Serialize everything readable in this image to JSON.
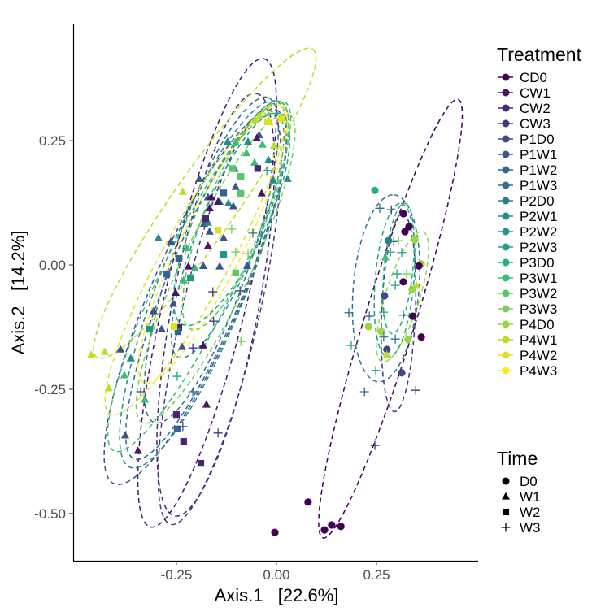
{
  "chart_data": {
    "type": "scatter",
    "xlabel": "Axis.1   [22.6%]",
    "ylabel": "Axis.2   [14.2%]",
    "xlim": [
      -0.508,
      0.504
    ],
    "ylim": [
      -0.595,
      0.484
    ],
    "xticks": [
      {
        "v": -0.25,
        "label": "-0.25"
      },
      {
        "v": 0,
        "label": "0.00"
      },
      {
        "v": 0.25,
        "label": "0.25"
      }
    ],
    "yticks": [
      {
        "v": 0.25,
        "label": "0.25"
      },
      {
        "v": 0,
        "label": "0.00"
      },
      {
        "v": -0.25,
        "label": "-0.25"
      },
      {
        "v": -0.5,
        "label": "-0.50"
      }
    ],
    "grid": false,
    "legend_placement": "right",
    "legend_treatment": {
      "title": "Treatment",
      "items": [
        {
          "label": "CD0",
          "color": "#440154"
        },
        {
          "label": "CW1",
          "color": "#481568"
        },
        {
          "label": "CW2",
          "color": "#482677"
        },
        {
          "label": "CW3",
          "color": "#453781"
        },
        {
          "label": "P1D0",
          "color": "#3F4788"
        },
        {
          "label": "P1W1",
          "color": "#39558C"
        },
        {
          "label": "P1W2",
          "color": "#32648E"
        },
        {
          "label": "P1W3",
          "color": "#2D718E"
        },
        {
          "label": "P2D0",
          "color": "#287D8E"
        },
        {
          "label": "P2W1",
          "color": "#238A8D"
        },
        {
          "label": "P2W2",
          "color": "#1F968B"
        },
        {
          "label": "P2W3",
          "color": "#20A386"
        },
        {
          "label": "P3D0",
          "color": "#29AF7F"
        },
        {
          "label": "P3W1",
          "color": "#3CBC75"
        },
        {
          "label": "P3W2",
          "color": "#56C667"
        },
        {
          "label": "P3W3",
          "color": "#75D054"
        },
        {
          "label": "P4D0",
          "color": "#95D840"
        },
        {
          "label": "P4W1",
          "color": "#BADE28"
        },
        {
          "label": "P4W2",
          "color": "#DDE318"
        },
        {
          "label": "P4W3",
          "color": "#FDE725"
        }
      ]
    },
    "legend_time": {
      "title": "Time",
      "items": [
        {
          "label": "D0",
          "shape": "circle"
        },
        {
          "label": "W1",
          "shape": "triangle"
        },
        {
          "label": "W2",
          "shape": "square"
        },
        {
          "label": "W3",
          "shape": "plus"
        }
      ]
    },
    "ellipses": [
      {
        "group": "CD0",
        "center": [
          0.285,
          -0.108
        ],
        "major": [
          0.169,
          0.441
        ],
        "minor_ratio": 0.11
      },
      {
        "group": "P1W3",
        "center": [
          0.274,
          -0.047
        ],
        "major": [
          0.02,
          0.188
        ],
        "minor_ratio": 0.35
      },
      {
        "group": "CW3",
        "center": [
          0.305,
          -0.096
        ],
        "major": [
          0.01,
          0.199
        ],
        "minor_ratio": 0.17
      },
      {
        "group": "P4D0",
        "center": [
          0.315,
          -0.064
        ],
        "major": [
          0.051,
          0.131
        ],
        "minor_ratio": 0.25
      },
      {
        "group": "P2W3",
        "center": [
          0.295,
          -0.031
        ],
        "major": [
          0.016,
          0.155
        ],
        "minor_ratio": 0.25
      },
      {
        "group": "P3D0",
        "center": [
          0.305,
          -0.007
        ],
        "major": [
          0.016,
          0.131
        ],
        "minor_ratio": 0.22
      },
      {
        "group": "CW1",
        "center": [
          -0.173,
          -0.056
        ],
        "major": [
          0.142,
          0.471
        ],
        "minor_ratio": 0.17
      },
      {
        "group": "CW2",
        "center": [
          -0.152,
          -0.08
        ],
        "major": [
          0.102,
          0.425
        ],
        "minor_ratio": 0.2
      },
      {
        "group": "CW3",
        "center": [
          -0.142,
          -0.105
        ],
        "major": [
          0.122,
          0.417
        ],
        "minor_ratio": 0.18
      },
      {
        "group": "P1W1",
        "center": [
          -0.203,
          -0.064
        ],
        "major": [
          0.203,
          0.376
        ],
        "minor_ratio": 0.22
      },
      {
        "group": "P1W2",
        "center": [
          -0.173,
          -0.031
        ],
        "major": [
          0.183,
          0.359
        ],
        "minor_ratio": 0.2
      },
      {
        "group": "P1W3",
        "center": [
          -0.163,
          0.01
        ],
        "major": [
          0.142,
          0.327
        ],
        "minor_ratio": 0.22
      },
      {
        "group": "P2W1",
        "center": [
          -0.183,
          -0.039
        ],
        "major": [
          0.183,
          0.368
        ],
        "minor_ratio": 0.22
      },
      {
        "group": "P2W2",
        "center": [
          -0.122,
          0.059
        ],
        "major": [
          0.122,
          0.245
        ],
        "minor_ratio": 0.23
      },
      {
        "group": "P2W3",
        "center": [
          -0.112,
          0.092
        ],
        "major": [
          0.122,
          0.212
        ],
        "minor_ratio": 0.3
      },
      {
        "group": "P3W1",
        "center": [
          -0.193,
          -0.023
        ],
        "major": [
          0.213,
          0.351
        ],
        "minor_ratio": 0.19
      },
      {
        "group": "P3W2",
        "center": [
          -0.102,
          0.1
        ],
        "major": [
          0.112,
          0.229
        ],
        "minor_ratio": 0.25
      },
      {
        "group": "P3W3",
        "center": [
          -0.152,
          -0.007
        ],
        "major": [
          0.183,
          0.31
        ],
        "minor_ratio": 0.2
      },
      {
        "group": "P4W1",
        "center": [
          -0.179,
          0.124
        ],
        "major": [
          0.27,
          0.31
        ],
        "minor_ratio": 0.17
      },
      {
        "group": "P4W2",
        "center": [
          -0.203,
          0.01
        ],
        "major": [
          0.213,
          0.31
        ],
        "minor_ratio": 0.19
      },
      {
        "group": "P4W3",
        "center": [
          -0.159,
          0.042
        ],
        "major": [
          0.173,
          0.278
        ],
        "minor_ratio": 0.2
      }
    ],
    "points": [
      [
        "P3D0",
        0.246,
        0.15
      ],
      [
        "P1W3",
        0.258,
        0.114
      ],
      [
        "CW3",
        0.287,
        0.111
      ],
      [
        "CD0",
        0.317,
        0.103
      ],
      [
        "CD0",
        0.331,
        0.077
      ],
      [
        "CD0",
        0.321,
        0.067
      ],
      [
        "P1W3",
        0.293,
        0.047
      ],
      [
        "P2D0",
        0.28,
        0.049
      ],
      [
        "P3W3",
        0.305,
        0.049
      ],
      [
        "P4D0",
        0.346,
        0.051
      ],
      [
        "P2W3",
        0.285,
        0.026
      ],
      [
        "P2W3",
        0.313,
        0.025
      ],
      [
        "P4D0",
        0.362,
        0.002
      ],
      [
        "CD0",
        0.356,
        -0.002
      ],
      [
        "P3W1",
        0.272,
        0.015
      ],
      [
        "P2W3",
        0.301,
        -0.018
      ],
      [
        "P3W3",
        0.325,
        -0.018
      ],
      [
        "CD0",
        0.317,
        -0.034
      ],
      [
        "P2W3",
        0.297,
        -0.041
      ],
      [
        "P1D0",
        0.27,
        -0.062
      ],
      [
        "P4W1",
        0.35,
        -0.042
      ],
      [
        "P4D0",
        0.339,
        -0.049
      ],
      [
        "P1W3",
        0.181,
        -0.096
      ],
      [
        "P1W3",
        0.232,
        -0.103
      ],
      [
        "P2W3",
        0.268,
        -0.095
      ],
      [
        "P1W3",
        0.317,
        -0.101
      ],
      [
        "CD0",
        0.341,
        -0.103
      ],
      [
        "P4D0",
        0.23,
        -0.124
      ],
      [
        "P4D0",
        0.262,
        -0.134
      ],
      [
        "P1W3",
        0.268,
        -0.145
      ],
      [
        "P1W3",
        0.297,
        -0.149
      ],
      [
        "CD0",
        0.362,
        -0.145
      ],
      [
        "P2W3",
        0.187,
        -0.162
      ],
      [
        "P1D0",
        0.276,
        -0.17
      ],
      [
        "P4D0",
        0.329,
        -0.15
      ],
      [
        "P4W1",
        0.276,
        -0.181
      ],
      [
        "P2W3",
        0.248,
        -0.212
      ],
      [
        "P1D0",
        0.313,
        -0.217
      ],
      [
        "P1W3",
        0.22,
        -0.255
      ],
      [
        "CW3",
        0.348,
        -0.252
      ],
      [
        "CW3",
        0.246,
        -0.363
      ],
      [
        "CD0",
        0.079,
        -0.477
      ],
      [
        "CD0",
        0.138,
        -0.523
      ],
      [
        "CD0",
        0.12,
        -0.533
      ],
      [
        "CD0",
        0.161,
        -0.526
      ],
      [
        "CD0",
        -0.004,
        -0.538
      ],
      [
        "P4W1",
        -0.463,
        -0.181
      ],
      [
        "P4W1",
        -0.429,
        -0.175
      ],
      [
        "P1W1",
        -0.39,
        -0.17
      ],
      [
        "P2W1",
        -0.364,
        -0.188
      ],
      [
        "P3W1",
        -0.38,
        -0.222
      ],
      [
        "P4W1",
        -0.419,
        -0.248
      ],
      [
        "P3W1",
        -0.329,
        -0.271
      ],
      [
        "P1W1",
        -0.378,
        -0.343
      ],
      [
        "CW1",
        -0.346,
        -0.374
      ],
      [
        "CW1",
        -0.175,
        -0.281
      ],
      [
        "P1W1",
        -0.236,
        -0.165
      ],
      [
        "CW1",
        -0.183,
        -0.162
      ],
      [
        "P1W1",
        -0.307,
        -0.093
      ],
      [
        "P1W1",
        -0.287,
        -0.129
      ],
      [
        "CW1",
        -0.252,
        -0.056
      ],
      [
        "P1W1",
        -0.258,
        -0.078
      ],
      [
        "P2W1",
        -0.295,
        0.054
      ],
      [
        "P1W1",
        -0.264,
        0.047
      ],
      [
        "P3W1",
        -0.232,
        -0.031
      ],
      [
        "CW1",
        -0.22,
        -0.003
      ],
      [
        "P1W1",
        -0.183,
        -0.002
      ],
      [
        "P3W1",
        -0.224,
        0.034
      ],
      [
        "P3W1",
        -0.203,
        -0.007
      ],
      [
        "P1W1",
        -0.142,
        -0.003
      ],
      [
        "P1W1",
        -0.181,
        0.083
      ],
      [
        "CW1",
        -0.171,
        0.038
      ],
      [
        "P1W1",
        -0.167,
        0.067
      ],
      [
        "P1W1",
        -0.171,
        0.136
      ],
      [
        "CW1",
        -0.163,
        0.136
      ],
      [
        "CW1",
        -0.167,
        0.114
      ],
      [
        "P2W1",
        -0.171,
        0.085
      ],
      [
        "P2W1",
        -0.142,
        0.127
      ],
      [
        "P2W1",
        -0.12,
        0.124
      ],
      [
        "CW1",
        -0.146,
        0.127
      ],
      [
        "P1W1",
        -0.108,
        0.118
      ],
      [
        "P1W1",
        -0.132,
        0.054
      ],
      [
        "P1W1",
        -0.073,
        -0.002
      ],
      [
        "P1W1",
        -0.193,
        0.173
      ],
      [
        "P1W1",
        -0.102,
        0.157
      ],
      [
        "P2W1",
        -0.104,
        0.193
      ],
      [
        "P3W1",
        -0.075,
        0.225
      ],
      [
        "P3W1",
        -0.055,
        0.206
      ],
      [
        "P2W1",
        -0.02,
        0.211
      ],
      [
        "P2W1",
        -0.008,
        0.17
      ],
      [
        "CW1",
        -0.037,
        0.144
      ],
      [
        "P2W1",
        0.028,
        0.173
      ],
      [
        "P1W1",
        -0.043,
        0.261
      ],
      [
        "P3W1",
        -0.035,
        0.242
      ],
      [
        "P4W1",
        -0.006,
        0.24
      ],
      [
        "P4W1",
        -0.234,
        0.147
      ],
      [
        "CW1",
        -0.049,
        0.255
      ],
      [
        "P2W1",
        -0.071,
        0.248
      ],
      [
        "P2W1",
        -0.122,
        0.248
      ],
      [
        "P3W1",
        -0.102,
        0.246
      ],
      [
        "P4W1",
        -0.053,
        0.292
      ],
      [
        "P4W1",
        -0.041,
        0.299
      ],
      [
        "P4W1",
        -0.018,
        0.288
      ],
      [
        "CW2",
        -0.232,
        -0.355
      ],
      [
        "CW2",
        -0.189,
        -0.399
      ],
      [
        "P1W2",
        -0.248,
        -0.33
      ],
      [
        "CW2",
        -0.25,
        -0.301
      ],
      [
        "CW2",
        -0.244,
        -0.126
      ],
      [
        "P1W2",
        -0.246,
        -0.134
      ],
      [
        "P4W2",
        -0.256,
        -0.124
      ],
      [
        "P2W2",
        -0.317,
        -0.129
      ],
      [
        "P1W2",
        -0.274,
        -0.018
      ],
      [
        "P2W2",
        -0.215,
        -0.026
      ],
      [
        "P1W2",
        -0.244,
        0.013
      ],
      [
        "P2W2",
        -0.132,
        0.021
      ],
      [
        "P3W2",
        -0.102,
        -0.016
      ],
      [
        "P4W2",
        -0.179,
        0.095
      ],
      [
        "P4W2",
        -0.146,
        0.07
      ],
      [
        "CW2",
        -0.177,
        0.093
      ],
      [
        "P1W2",
        -0.132,
        0.145
      ],
      [
        "P3W2",
        -0.089,
        0.144
      ],
      [
        "P3W2",
        -0.089,
        0.178
      ],
      [
        "CW2",
        -0.047,
        0.194
      ],
      [
        "P3W2",
        -0.11,
        0.194
      ],
      [
        "P4W2",
        0.012,
        0.294
      ],
      [
        "P4W2",
        -0.022,
        0.288
      ],
      [
        "CW3",
        -0.146,
        -0.338
      ],
      [
        "CW3",
        -0.234,
        -0.325
      ],
      [
        "P2W3",
        -0.248,
        -0.224
      ],
      [
        "CW3",
        -0.339,
        -0.255
      ],
      [
        "P1W3",
        -0.209,
        -0.255
      ],
      [
        "CW3",
        -0.209,
        -0.167
      ],
      [
        "P3W3",
        -0.089,
        -0.154
      ],
      [
        "CW3",
        -0.157,
        -0.113
      ],
      [
        "CW3",
        -0.159,
        -0.054
      ],
      [
        "CW3",
        -0.091,
        -0.052
      ],
      [
        "P3W3",
        -0.102,
        0.026
      ],
      [
        "P3W3",
        -0.071,
        0.023
      ],
      [
        "P3W3",
        -0.112,
        0.072
      ],
      [
        "P2W3",
        -0.024,
        0.19
      ],
      [
        "P3W3",
        -0.02,
        0.304
      ],
      [
        "P1W3",
        -0.059,
        0.064
      ]
    ]
  }
}
